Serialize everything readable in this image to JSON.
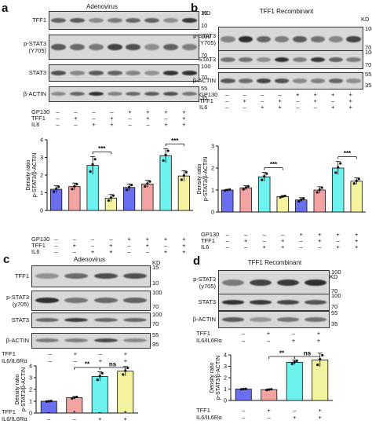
{
  "panels": [
    {
      "id": "a",
      "letter": "a",
      "title": "Adenovirus",
      "kd_label": "KD",
      "blots": [
        {
          "label": "TFF1",
          "markers": [
            "15",
            "10"
          ]
        },
        {
          "label": "p-STAT3\n(Y705)",
          "markers": [
            "100",
            "70"
          ]
        },
        {
          "label": "STAT3",
          "markers": [
            "100",
            "70"
          ]
        },
        {
          "label": "β-ACTIN",
          "markers": [
            "55",
            "35"
          ]
        }
      ],
      "blot_table": [
        {
          "label": "GP130",
          "signs": [
            "–",
            "–",
            "–",
            "–",
            "+",
            "+",
            "+",
            "+"
          ]
        },
        {
          "label": "TFF1",
          "signs": [
            "–",
            "+",
            "–",
            "+",
            "–",
            "+",
            "–",
            "+"
          ]
        },
        {
          "label": "IL6",
          "signs": [
            "–",
            "–",
            "+",
            "+",
            "–",
            "–",
            "+",
            "+"
          ]
        }
      ],
      "chart_table": [
        {
          "label": "GP130",
          "signs": [
            "–",
            "–",
            "–",
            "–",
            "+",
            "+",
            "+",
            "+"
          ]
        },
        {
          "label": "TFF1",
          "signs": [
            "–",
            "+",
            "–",
            "+",
            "–",
            "+",
            "–",
            "+"
          ]
        },
        {
          "label": "IL6",
          "signs": [
            "–",
            "–",
            "+",
            "+",
            "–",
            "–",
            "+",
            "+"
          ]
        }
      ],
      "chart_data": {
        "type": "bar",
        "ylabel": "Density ratio\np-STAT3/β-ACTIN",
        "ylim": [
          0,
          4
        ],
        "yticks": [
          "0",
          "1",
          "2",
          "3",
          "4"
        ],
        "values": [
          1.2,
          1.35,
          2.55,
          0.7,
          1.3,
          1.5,
          3.1,
          1.95
        ],
        "errors": [
          0.2,
          0.2,
          0.5,
          0.2,
          0.2,
          0.2,
          0.4,
          0.3
        ],
        "colors": [
          "#6a6ef0",
          "#f4a3a3",
          "#6ef2f0",
          "#f3f3a0",
          "#6a6ef0",
          "#f4a3a3",
          "#6ef2f0",
          "#f3f3a0"
        ],
        "significance": [
          {
            "from": 2,
            "to": 3,
            "label": "***"
          },
          {
            "from": 6,
            "to": 7,
            "label": "***"
          }
        ]
      }
    },
    {
      "id": "b",
      "letter": "b",
      "title": "TFF1 Recombinant",
      "kd_label": "KD",
      "blots": [
        {
          "label": "p-STAT3\n(Y705)",
          "markers": [
            "100",
            "70"
          ]
        },
        {
          "label": "STAT3",
          "markers": [
            "100",
            "70"
          ]
        },
        {
          "label": "β-ACTIN",
          "markers": [
            "55",
            "35"
          ]
        }
      ],
      "blot_table": [
        {
          "label": "GP130",
          "signs": [
            "–",
            "–",
            "–",
            "–",
            "+",
            "+",
            "+",
            "+"
          ]
        },
        {
          "label": "TFF1",
          "signs": [
            "–",
            "+",
            "–",
            "+",
            "–",
            "+",
            "–",
            "+"
          ]
        },
        {
          "label": "IL6",
          "signs": [
            "–",
            "–",
            "+",
            "+",
            "–",
            "–",
            "+",
            "+"
          ]
        }
      ],
      "chart_table": [
        {
          "label": "GP130",
          "signs": [
            "–",
            "–",
            "–",
            "–",
            "+",
            "+",
            "+",
            "+"
          ]
        },
        {
          "label": "TFF1",
          "signs": [
            "–",
            "+",
            "–",
            "+",
            "–",
            "+",
            "–",
            "+"
          ]
        },
        {
          "label": "IL6",
          "signs": [
            "–",
            "–",
            "+",
            "+",
            "–",
            "–",
            "+",
            "+"
          ]
        }
      ],
      "chart_data": {
        "type": "bar",
        "ylabel": "Density ratio\np-STAT3/β-ACTIN",
        "ylim": [
          0,
          3
        ],
        "yticks": [
          "0",
          "1",
          "2",
          "3"
        ],
        "values": [
          1.0,
          1.1,
          1.6,
          0.7,
          0.55,
          1.0,
          2.0,
          1.4
        ],
        "errors": [
          0.03,
          0.1,
          0.2,
          0.05,
          0.1,
          0.15,
          0.3,
          0.15
        ],
        "colors": [
          "#6a6ef0",
          "#f4a3a3",
          "#6ef2f0",
          "#f3f3a0",
          "#6a6ef0",
          "#f4a3a3",
          "#6ef2f0",
          "#f3f3a0"
        ],
        "significance": [
          {
            "from": 2,
            "to": 3,
            "label": "***"
          },
          {
            "from": 6,
            "to": 7,
            "label": "***"
          }
        ]
      }
    },
    {
      "id": "c",
      "letter": "c",
      "title": "Adenovirus",
      "kd_label": "KD",
      "blots": [
        {
          "label": "TFF1",
          "markers": [
            "15",
            "10"
          ]
        },
        {
          "label": "p-STAT3\n(y705)",
          "markers": [
            "100",
            "70"
          ]
        },
        {
          "label": "STAT3",
          "markers": [
            "100",
            "70"
          ]
        },
        {
          "label": "β-ACTIN",
          "markers": [
            "55",
            "35"
          ]
        }
      ],
      "blot_table": [
        {
          "label": "TFF1",
          "signs": [
            "–",
            "+",
            "–",
            "+"
          ]
        },
        {
          "label": "IL6/IL6Rα",
          "signs": [
            "–",
            "–",
            "+",
            "+"
          ]
        }
      ],
      "chart_table": [
        {
          "label": "TFF1",
          "signs": [
            "–",
            "+",
            "–",
            "+"
          ]
        },
        {
          "label": "IL6/IL6Rα",
          "signs": [
            "–",
            "–",
            "+",
            "+"
          ]
        }
      ],
      "chart_data": {
        "type": "bar",
        "ylabel": "Density ratio\np-STAT3/β-ACTIN",
        "ylim": [
          0,
          4
        ],
        "yticks": [
          "0",
          "1",
          "2",
          "3",
          "4"
        ],
        "values": [
          1.0,
          1.3,
          3.1,
          3.55
        ],
        "errors": [
          0.03,
          0.1,
          0.4,
          0.4
        ],
        "colors": [
          "#6a6ef0",
          "#f4a3a3",
          "#6ef2f0",
          "#f3f3a0"
        ],
        "significance": [
          {
            "from": 1,
            "to": 2,
            "label": "**"
          },
          {
            "from": 2,
            "to": 3,
            "label": "ns"
          }
        ]
      }
    },
    {
      "id": "d",
      "letter": "d",
      "title": "TFF1 Recombinant",
      "kd_label": "KD",
      "blots": [
        {
          "label": "p-STAT3\n(y705)",
          "markers": [
            "100",
            "70"
          ]
        },
        {
          "label": "STAT3",
          "markers": [
            "100",
            "70"
          ]
        },
        {
          "label": "β-ACTIN",
          "markers": [
            "55",
            "35"
          ]
        }
      ],
      "blot_table": [
        {
          "label": "TFF1",
          "signs": [
            "–",
            "+",
            "–",
            "+"
          ]
        },
        {
          "label": "IL6/IL6Rα",
          "signs": [
            "–",
            "–",
            "+",
            "+"
          ]
        }
      ],
      "chart_table": [
        {
          "label": "TFF1",
          "signs": [
            "–",
            "+",
            "–",
            "+"
          ]
        },
        {
          "label": "IL6/IL6Rα",
          "signs": [
            "–",
            "–",
            "+",
            "+"
          ]
        }
      ],
      "chart_data": {
        "type": "bar",
        "ylabel": "Density ratio\np-STAT3/β-ACTIN",
        "ylim": [
          0,
          4
        ],
        "yticks": [
          "0",
          "1",
          "2",
          "3",
          "4"
        ],
        "values": [
          1.0,
          0.95,
          3.35,
          3.55
        ],
        "errors": [
          0.03,
          0.05,
          0.2,
          0.6
        ],
        "colors": [
          "#6a6ef0",
          "#f4a3a3",
          "#6ef2f0",
          "#f3f3a0"
        ],
        "significance": [
          {
            "from": 1,
            "to": 2,
            "label": "**"
          },
          {
            "from": 2,
            "to": 3,
            "label": "ns"
          }
        ]
      }
    }
  ]
}
